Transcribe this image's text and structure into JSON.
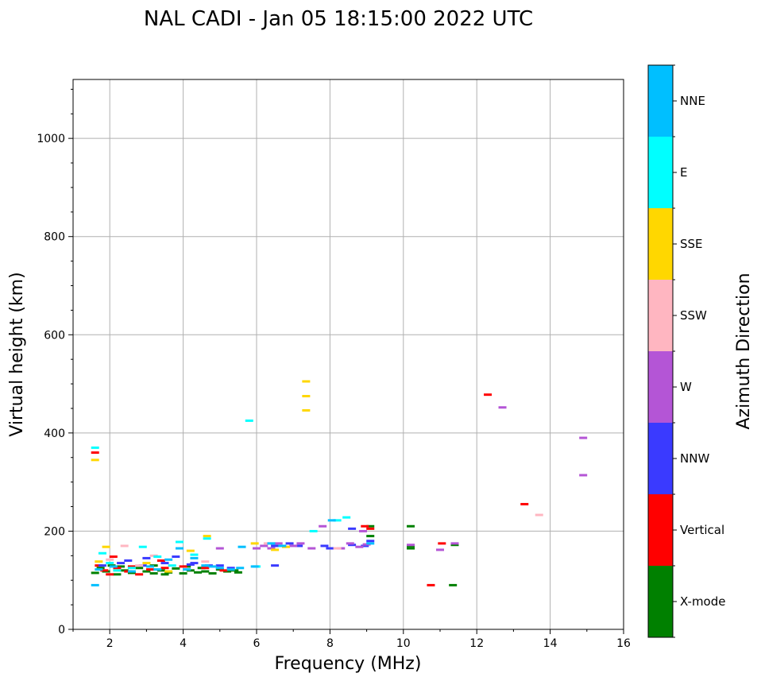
{
  "chart_data": {
    "type": "scatter",
    "title": "NAL CADI - Jan 05 18:15:00 2022 UTC",
    "xlabel": "Frequency (MHz)",
    "ylabel": "Virtual height (km)",
    "xlim": [
      1,
      16
    ],
    "ylim": [
      0,
      1120
    ],
    "x_ticks": [
      2,
      4,
      6,
      8,
      10,
      12,
      14,
      16
    ],
    "y_ticks": [
      0,
      200,
      400,
      600,
      800,
      1000
    ],
    "grid": true,
    "colorbar": {
      "title": "Azimuth Direction",
      "categories": [
        {
          "name": "X-mode",
          "color": "#008000"
        },
        {
          "name": "Vertical",
          "color": "#ff0000"
        },
        {
          "name": "NNW",
          "color": "#3a3aff"
        },
        {
          "name": "W",
          "color": "#b455d6"
        },
        {
          "name": "SSW",
          "color": "#ffb6c1"
        },
        {
          "name": "SSE",
          "color": "#ffd700"
        },
        {
          "name": "E",
          "color": "#00ffff"
        },
        {
          "name": "NNE",
          "color": "#00bfff"
        }
      ]
    },
    "series": [
      {
        "name": "X-mode",
        "points": [
          [
            1.6,
            115
          ],
          [
            1.75,
            125
          ],
          [
            1.9,
            118
          ],
          [
            2.05,
            130
          ],
          [
            2.2,
            112
          ],
          [
            2.4,
            120
          ],
          [
            2.6,
            115
          ],
          [
            2.8,
            125
          ],
          [
            3.0,
            118
          ],
          [
            3.2,
            114
          ],
          [
            3.4,
            120
          ],
          [
            3.6,
            116
          ],
          [
            3.8,
            124
          ],
          [
            4.0,
            114
          ],
          [
            4.2,
            120
          ],
          [
            4.4,
            116
          ],
          [
            4.6,
            118
          ],
          [
            4.8,
            114
          ],
          [
            5.0,
            122
          ],
          [
            5.2,
            118
          ],
          [
            5.4,
            120
          ],
          [
            5.5,
            116
          ],
          [
            3.5,
            112
          ],
          [
            4.5,
            125
          ],
          [
            10.2,
            165
          ],
          [
            10.2,
            170
          ],
          [
            10.2,
            210
          ],
          [
            11.35,
            90
          ],
          [
            11.4,
            172
          ],
          [
            9.1,
            190
          ],
          [
            9.1,
            210
          ],
          [
            3.2,
            130
          ],
          [
            4.1,
            128
          ],
          [
            2.3,
            128
          ]
        ]
      },
      {
        "name": "Vertical",
        "points": [
          [
            1.6,
            360
          ],
          [
            1.7,
            130
          ],
          [
            1.85,
            120
          ],
          [
            2.0,
            112
          ],
          [
            2.2,
            125
          ],
          [
            2.5,
            118
          ],
          [
            2.8,
            112
          ],
          [
            3.1,
            122
          ],
          [
            3.5,
            125
          ],
          [
            4.0,
            128
          ],
          [
            4.6,
            125
          ],
          [
            5.1,
            120
          ],
          [
            2.1,
            148
          ],
          [
            3.4,
            140
          ],
          [
            8.95,
            210
          ],
          [
            9.1,
            205
          ],
          [
            10.75,
            90
          ],
          [
            11.05,
            175
          ],
          [
            12.3,
            478
          ],
          [
            13.3,
            255
          ],
          [
            2.6,
            128
          ]
        ]
      },
      {
        "name": "NNW",
        "points": [
          [
            1.8,
            130
          ],
          [
            2.3,
            135
          ],
          [
            2.9,
            130
          ],
          [
            3.5,
            135
          ],
          [
            4.2,
            132
          ],
          [
            4.7,
            130
          ],
          [
            5.0,
            130
          ],
          [
            5.3,
            125
          ],
          [
            6.5,
            130
          ],
          [
            6.5,
            170
          ],
          [
            6.9,
            175
          ],
          [
            7.15,
            170
          ],
          [
            7.85,
            170
          ],
          [
            8.0,
            165
          ],
          [
            8.6,
            205
          ],
          [
            8.6,
            172
          ],
          [
            8.95,
            170
          ],
          [
            9.1,
            180
          ],
          [
            2.5,
            140
          ],
          [
            3.0,
            145
          ],
          [
            3.8,
            148
          ],
          [
            4.3,
            135
          ]
        ]
      },
      {
        "name": "W",
        "points": [
          [
            5.0,
            165
          ],
          [
            6.0,
            165
          ],
          [
            6.2,
            170
          ],
          [
            6.6,
            175
          ],
          [
            7.0,
            170
          ],
          [
            7.5,
            165
          ],
          [
            7.8,
            210
          ],
          [
            8.3,
            165
          ],
          [
            8.55,
            175
          ],
          [
            8.8,
            168
          ],
          [
            8.9,
            200
          ],
          [
            9.0,
            173
          ],
          [
            10.2,
            172
          ],
          [
            11.0,
            162
          ],
          [
            11.4,
            175
          ],
          [
            12.7,
            452
          ],
          [
            14.9,
            390
          ],
          [
            14.9,
            314
          ],
          [
            6.4,
            165
          ],
          [
            7.2,
            175
          ]
        ]
      },
      {
        "name": "SSW",
        "points": [
          [
            2.0,
            142
          ],
          [
            2.4,
            170
          ],
          [
            2.8,
            130
          ],
          [
            3.2,
            150
          ],
          [
            6.3,
            175
          ],
          [
            8.2,
            165
          ],
          [
            13.7,
            233
          ],
          [
            4.6,
            138
          ]
        ]
      },
      {
        "name": "SSE",
        "points": [
          [
            1.6,
            345
          ],
          [
            1.7,
            138
          ],
          [
            1.9,
            168
          ],
          [
            2.2,
            120
          ],
          [
            3.0,
            135
          ],
          [
            4.2,
            160
          ],
          [
            4.65,
            190
          ],
          [
            5.95,
            175
          ],
          [
            6.5,
            162
          ],
          [
            6.8,
            168
          ],
          [
            7.35,
            505
          ],
          [
            7.35,
            475
          ],
          [
            7.35,
            446
          ],
          [
            3.6,
            118
          ]
        ]
      },
      {
        "name": "E",
        "points": [
          [
            1.6,
            370
          ],
          [
            1.8,
            155
          ],
          [
            2.0,
            135
          ],
          [
            2.6,
            125
          ],
          [
            2.9,
            168
          ],
          [
            3.3,
            148
          ],
          [
            3.9,
            178
          ],
          [
            4.3,
            152
          ],
          [
            4.65,
            185
          ],
          [
            5.8,
            425
          ],
          [
            6.0,
            128
          ],
          [
            7.55,
            200
          ],
          [
            8.2,
            222
          ],
          [
            8.45,
            228
          ],
          [
            3.7,
            130
          ],
          [
            2.2,
            120
          ]
        ]
      },
      {
        "name": "NNE",
        "points": [
          [
            1.7,
            122
          ],
          [
            2.1,
            128
          ],
          [
            2.6,
            118
          ],
          [
            3.1,
            128
          ],
          [
            3.6,
            142
          ],
          [
            3.9,
            165
          ],
          [
            4.3,
            145
          ],
          [
            4.6,
            130
          ],
          [
            4.8,
            128
          ],
          [
            5.0,
            125
          ],
          [
            5.3,
            122
          ],
          [
            5.55,
            125
          ],
          [
            5.6,
            168
          ],
          [
            5.95,
            128
          ],
          [
            6.4,
            175
          ],
          [
            6.7,
            170
          ],
          [
            8.05,
            222
          ],
          [
            9.1,
            175
          ],
          [
            3.3,
            122
          ],
          [
            4.1,
            122
          ],
          [
            1.6,
            90
          ]
        ]
      }
    ]
  }
}
